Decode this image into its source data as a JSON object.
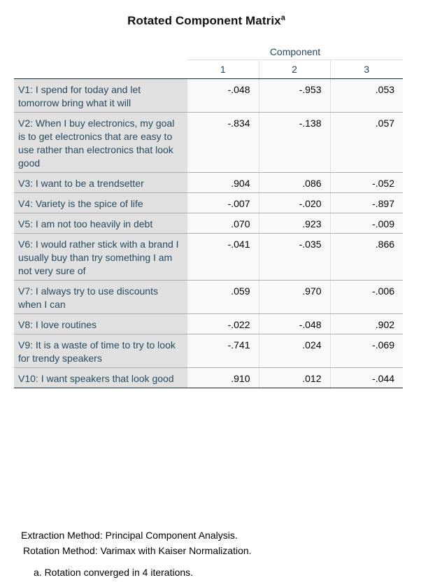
{
  "title": {
    "text": "Rotated Component Matrix",
    "superscript": "a"
  },
  "header": {
    "group_label": "Component",
    "columns": [
      "1",
      "2",
      "3"
    ]
  },
  "rows": [
    {
      "label": "V1: I spend for today and let tomorrow bring what it will",
      "values": [
        "-.048",
        "-.953",
        ".053"
      ]
    },
    {
      "label": "V2: When I buy electronics, my goal is to get electronics that are easy to use rather than electronics that look good",
      "values": [
        "-.834",
        "-.138",
        ".057"
      ]
    },
    {
      "label": "V3: I want to be a trendsetter",
      "values": [
        ".904",
        ".086",
        "-.052"
      ]
    },
    {
      "label": "V4: Variety is the spice of life",
      "values": [
        "-.007",
        "-.020",
        "-.897"
      ]
    },
    {
      "label": "V5: I am not too heavily in debt",
      "values": [
        ".070",
        ".923",
        "-.009"
      ]
    },
    {
      "label": "V6: I would rather stick with a brand I usually buy than try something I am not very sure of",
      "values": [
        "-.041",
        "-.035",
        ".866"
      ]
    },
    {
      "label": "V7: I always try to use discounts when I can",
      "values": [
        ".059",
        ".970",
        "-.006"
      ]
    },
    {
      "label": "V8: I love routines",
      "values": [
        "-.022",
        "-.048",
        ".902"
      ]
    },
    {
      "label": "V9:  It is a waste of time to try to look for trendy speakers",
      "values": [
        "-.741",
        ".024",
        "-.069"
      ]
    },
    {
      "label": "V10: I want speakers that look good",
      "values": [
        ".910",
        ".012",
        "-.044"
      ]
    }
  ],
  "footer": {
    "extraction": "Extraction Method: Principal Component Analysis.",
    "rotation": "Rotation Method: Varimax with Kaiser Normalization.",
    "note": "a. Rotation converged in 4 iterations."
  }
}
